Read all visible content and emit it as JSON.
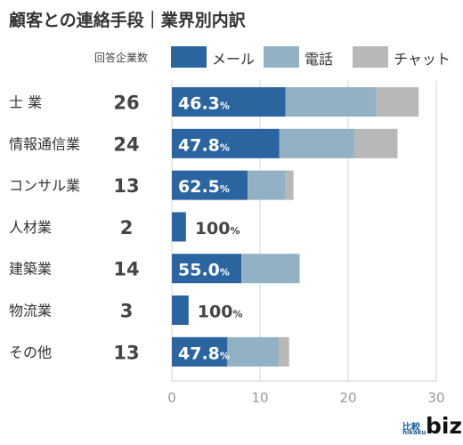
{
  "chart_data": {
    "type": "bar",
    "orientation": "horizontal",
    "stacked": true,
    "title": "顧客との連絡手段｜業界別内訳",
    "count_header": "回答企業数",
    "categories": [
      "士 業",
      "情報通信業",
      "コンサル業",
      "人材業",
      "建築業",
      "物流業",
      "その他"
    ],
    "counts": [
      "26",
      "24",
      "13",
      "2",
      "14",
      "3",
      "13"
    ],
    "series": [
      {
        "name": "メール",
        "values": [
          12.9,
          12.2,
          8.6,
          1.6,
          7.9,
          1.9,
          6.3
        ]
      },
      {
        "name": "電話",
        "values": [
          10.3,
          8.5,
          4.3,
          0,
          6.6,
          0,
          5.9
        ]
      },
      {
        "name": "チャット",
        "values": [
          4.8,
          4.9,
          0.9,
          0,
          0,
          0,
          1.1
        ]
      }
    ],
    "data_labels": [
      {
        "value": "46.3",
        "unit": "%"
      },
      {
        "value": "47.8",
        "unit": "%"
      },
      {
        "value": "62.5",
        "unit": "%"
      },
      {
        "value": "100",
        "unit": "%"
      },
      {
        "value": "55.0",
        "unit": "%"
      },
      {
        "value": "100",
        "unit": "%"
      },
      {
        "value": "47.8",
        "unit": "%"
      }
    ],
    "x_ticks": [
      "0",
      "10",
      "20",
      "30"
    ],
    "xlim": [
      0,
      30
    ],
    "grid": true,
    "legend_position": "top",
    "colors": {
      "メール": "#2a65a0",
      "電話": "#93b1c4",
      "チャット": "#b8b8b8"
    }
  },
  "logo": {
    "small_top": "比較",
    "small_bottom": "hikaku",
    "big": "biz"
  }
}
